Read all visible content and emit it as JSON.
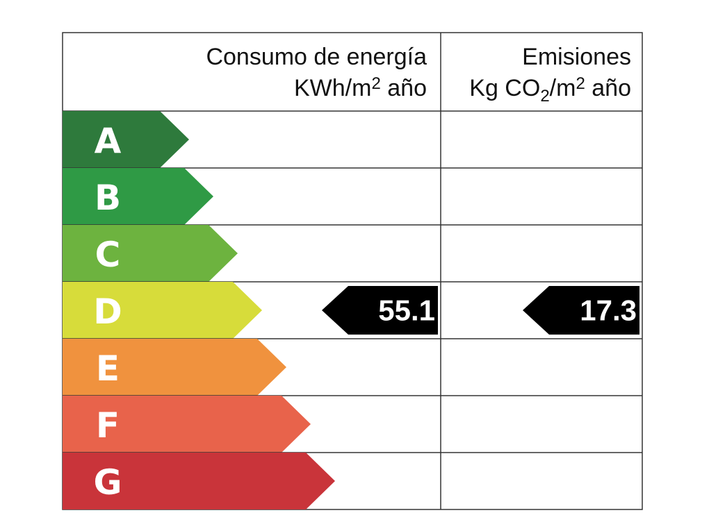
{
  "header": {
    "energy": {
      "title": "Consumo de energía",
      "unit": "KWh/m",
      "unit_sup": "2",
      "unit_end": " año"
    },
    "emissions": {
      "title": "Emisiones",
      "unit": "Kg CO",
      "unit_sub": "2",
      "unit_mid": "/m",
      "unit_sup": "2",
      "unit_end": " año"
    }
  },
  "rows": [
    {
      "letter": "A",
      "color": "#2e7a3c"
    },
    {
      "letter": "B",
      "color": "#2f9a45"
    },
    {
      "letter": "C",
      "color": "#6db33f"
    },
    {
      "letter": "D",
      "color": "#d7dc3a",
      "energy": 55.1,
      "emissions": 17.3
    },
    {
      "letter": "E",
      "color": "#f0923e"
    },
    {
      "letter": "F",
      "color": "#e8634b"
    },
    {
      "letter": "G",
      "color": "#c9343a"
    }
  ]
}
